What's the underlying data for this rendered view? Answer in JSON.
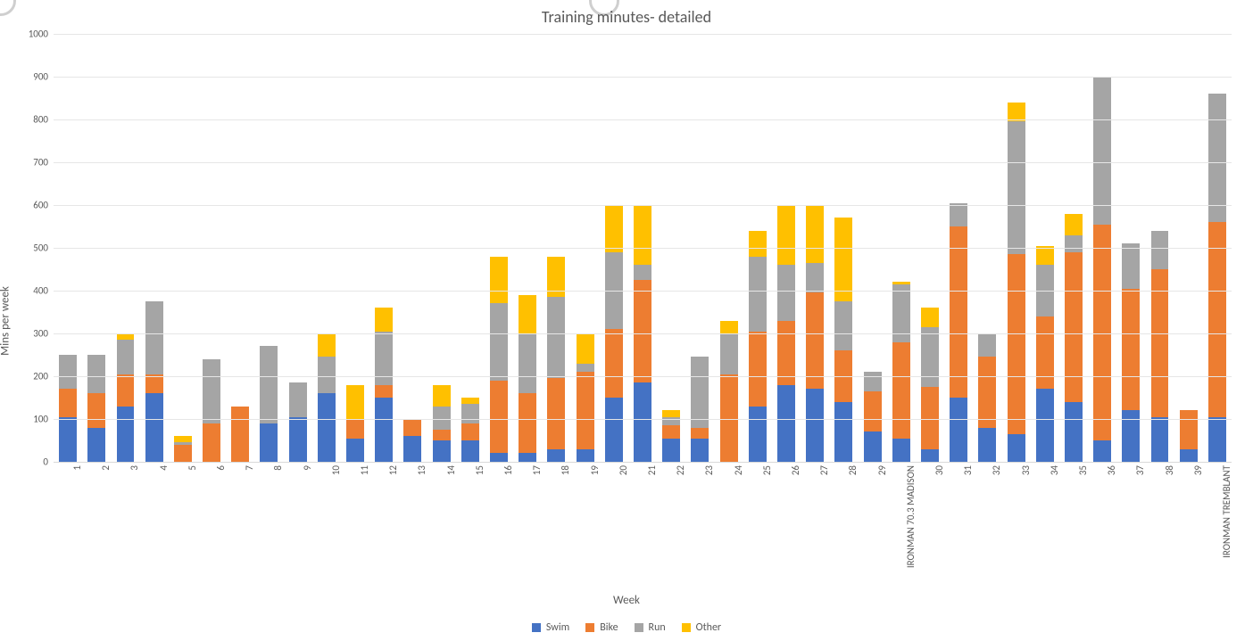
{
  "chart": {
    "type": "stacked-bar",
    "title": "Training minutes- detailed",
    "xlabel": "Week",
    "ylabel": "Mins per week",
    "title_fontsize": 18,
    "axis_label_fontsize": 13,
    "tick_fontsize": 11,
    "background_color": "#ffffff",
    "grid_color": "#e6e6e6",
    "axis_line_color": "#d9d9d9",
    "text_color": "#595959",
    "ylim": [
      0,
      1000
    ],
    "ytick_step": 100,
    "yticks": [
      0,
      100,
      200,
      300,
      400,
      500,
      600,
      700,
      800,
      900,
      1000
    ],
    "bar_width_ratio": 0.62,
    "series": [
      {
        "key": "swim",
        "label": "Swim",
        "color": "#4472c4"
      },
      {
        "key": "bike",
        "label": "Bike",
        "color": "#ed7d31"
      },
      {
        "key": "run",
        "label": "Run",
        "color": "#a5a5a5"
      },
      {
        "key": "other",
        "label": "Other",
        "color": "#ffc000"
      }
    ],
    "categories": [
      "1",
      "2",
      "3",
      "4",
      "5",
      "6",
      "7",
      "8",
      "9",
      "10",
      "11",
      "12",
      "13",
      "14",
      "15",
      "16",
      "17",
      "18",
      "19",
      "20",
      "21",
      "22",
      "23",
      "24",
      "25",
      "26",
      "27",
      "28",
      "29",
      "IRONMAN 70.3 MADISON",
      "30",
      "31",
      "32",
      "33",
      "34",
      "35",
      "36",
      "37",
      "38",
      "39",
      "IRONMAN TREMBLANT"
    ],
    "data": {
      "swim": [
        105,
        80,
        130,
        160,
        0,
        0,
        0,
        90,
        105,
        160,
        55,
        150,
        60,
        50,
        50,
        20,
        20,
        30,
        30,
        150,
        185,
        55,
        55,
        0,
        130,
        180,
        170,
        140,
        70,
        55,
        30,
        150,
        80,
        65,
        170,
        140,
        50,
        120,
        105,
        30,
        105
      ],
      "bike": [
        65,
        80,
        75,
        45,
        40,
        90,
        130,
        0,
        0,
        0,
        45,
        30,
        40,
        25,
        40,
        170,
        140,
        165,
        180,
        160,
        240,
        30,
        25,
        205,
        175,
        150,
        225,
        120,
        95,
        225,
        145,
        400,
        165,
        420,
        170,
        350,
        505,
        285,
        345,
        90,
        455
      ],
      "run": [
        80,
        90,
        80,
        170,
        5,
        150,
        0,
        180,
        80,
        85,
        0,
        125,
        0,
        55,
        45,
        180,
        140,
        190,
        20,
        180,
        35,
        20,
        165,
        95,
        175,
        130,
        70,
        115,
        45,
        135,
        140,
        55,
        55,
        310,
        120,
        40,
        345,
        105,
        90,
        0,
        300
      ],
      "other": [
        0,
        0,
        15,
        0,
        15,
        0,
        0,
        0,
        0,
        55,
        80,
        55,
        0,
        50,
        15,
        110,
        90,
        95,
        70,
        110,
        140,
        15,
        0,
        30,
        60,
        140,
        135,
        195,
        0,
        5,
        45,
        0,
        0,
        45,
        45,
        50,
        0,
        0,
        0,
        0,
        0
      ]
    },
    "legend_position": "bottom"
  }
}
